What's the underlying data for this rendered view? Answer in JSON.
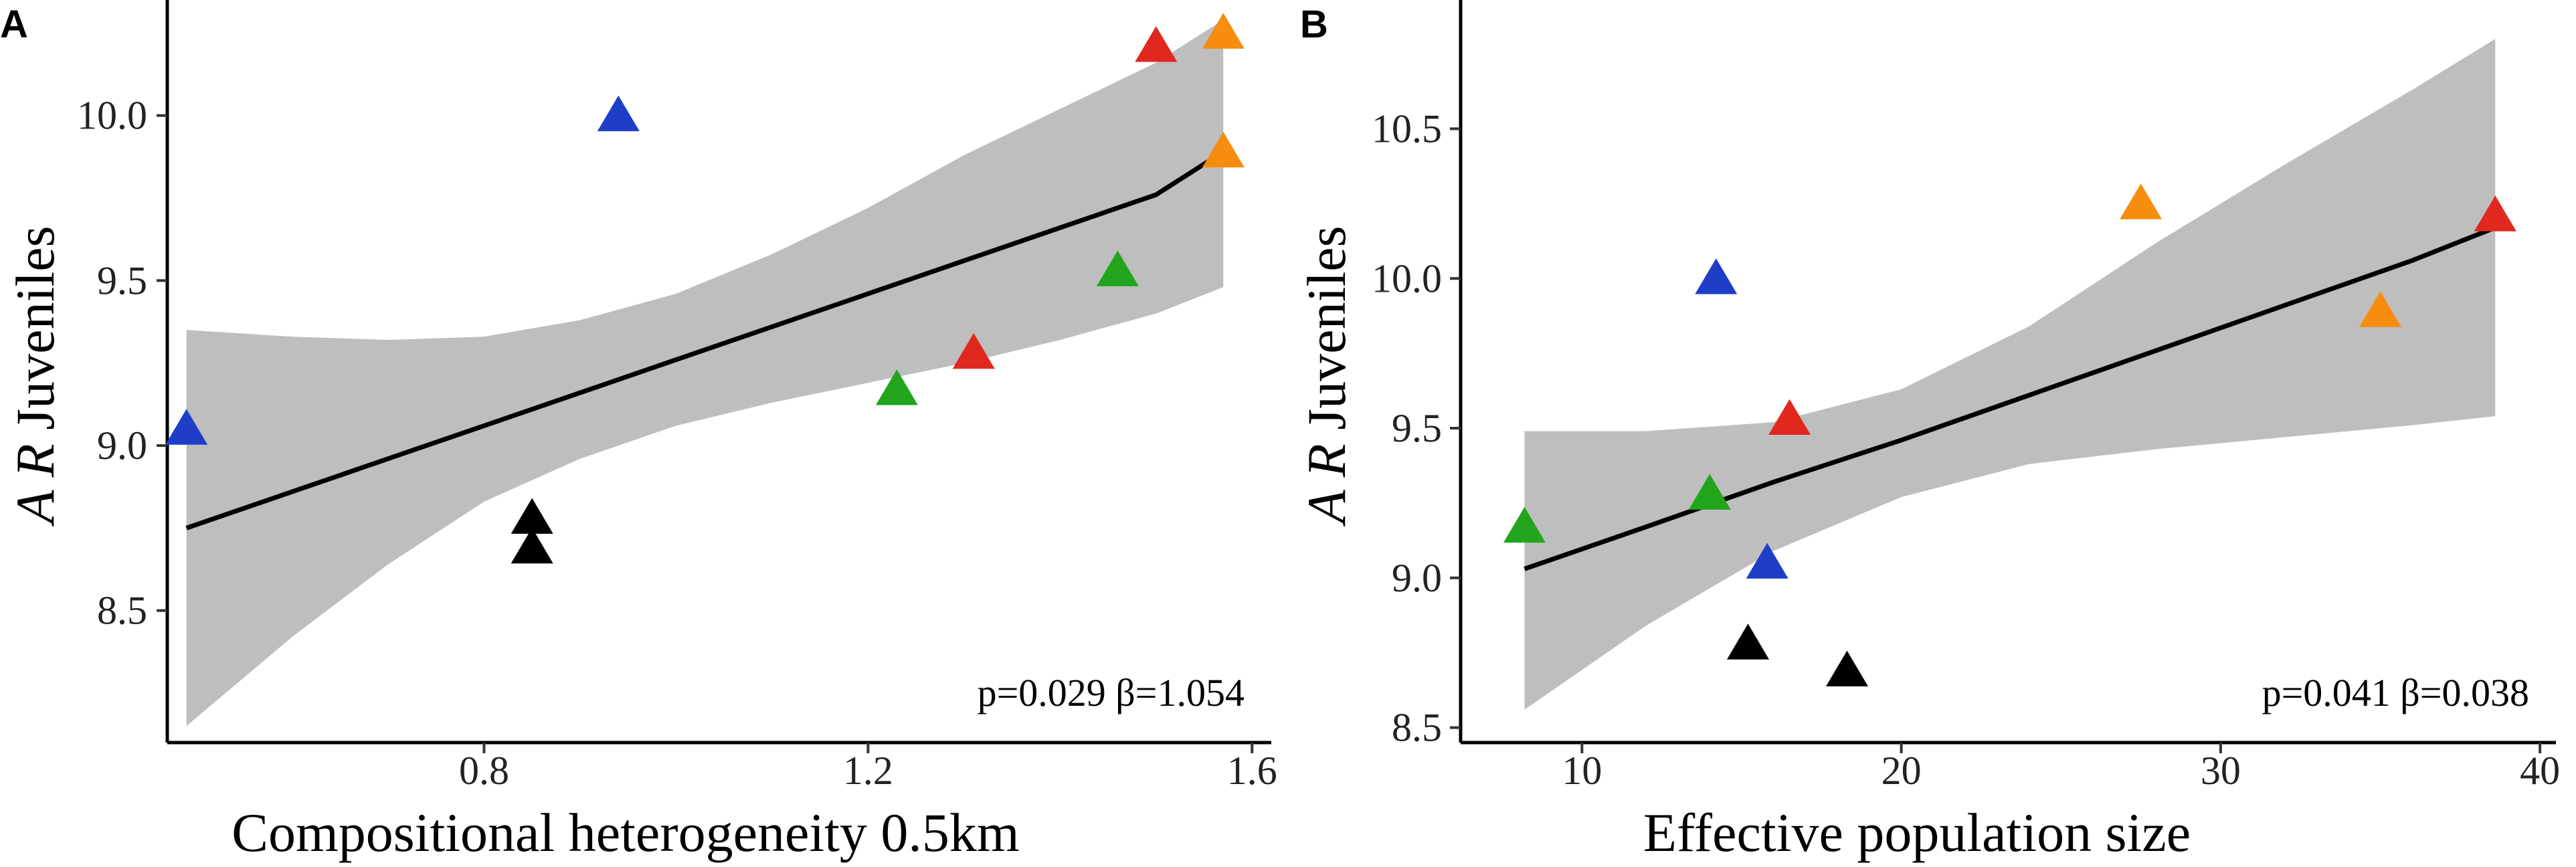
{
  "chart_data": [
    {
      "panel": "A",
      "type": "scatter",
      "title": "",
      "xlabel": "Compositional heterogeneity 0.5km",
      "ylabel_italic": "A R",
      "ylabel_rest": " Juveniles",
      "xlim": [
        0.47,
        1.62
      ],
      "ylim": [
        8.1,
        10.35
      ],
      "xticks": [
        0.8,
        1.2,
        1.6
      ],
      "xtick_labels": [
        "0.8",
        "1.2",
        "1.6"
      ],
      "yticks": [
        8.5,
        9.0,
        9.5,
        10.0
      ],
      "ytick_labels": [
        "8.5",
        "9.0",
        "9.5",
        "10.0"
      ],
      "annotation": "p=0.029 β=1.054",
      "fit": {
        "x": [
          0.49,
          0.6,
          0.7,
          0.8,
          0.9,
          1.0,
          1.1,
          1.2,
          1.3,
          1.4,
          1.5,
          1.57
        ],
        "y": [
          8.75,
          8.86,
          8.96,
          9.06,
          9.16,
          9.26,
          9.36,
          9.46,
          9.56,
          9.66,
          9.76,
          9.89
        ],
        "lower": [
          8.15,
          8.42,
          8.64,
          8.83,
          8.96,
          9.06,
          9.13,
          9.19,
          9.25,
          9.32,
          9.4,
          9.48
        ],
        "upper": [
          9.35,
          9.33,
          9.32,
          9.33,
          9.38,
          9.46,
          9.58,
          9.72,
          9.88,
          10.02,
          10.16,
          10.29
        ]
      },
      "points": [
        {
          "x": 0.49,
          "y": 9.05,
          "group": "blue"
        },
        {
          "x": 0.94,
          "y": 10.0,
          "group": "blue"
        },
        {
          "x": 0.85,
          "y": 8.78,
          "group": "black"
        },
        {
          "x": 0.85,
          "y": 8.69,
          "group": "black"
        },
        {
          "x": 1.23,
          "y": 9.17,
          "group": "green"
        },
        {
          "x": 1.46,
          "y": 9.53,
          "group": "green"
        },
        {
          "x": 1.31,
          "y": 9.28,
          "group": "red"
        },
        {
          "x": 1.5,
          "y": 10.21,
          "group": "red"
        },
        {
          "x": 1.57,
          "y": 9.89,
          "group": "orange"
        },
        {
          "x": 1.57,
          "y": 10.25,
          "group": "orange"
        }
      ]
    },
    {
      "panel": "B",
      "type": "scatter",
      "title": "",
      "xlabel": "Effective population size",
      "ylabel_italic": "A R",
      "ylabel_rest": " Juveniles",
      "xlim": [
        6.2,
        40.5
      ],
      "ylim": [
        8.45,
        10.93
      ],
      "xticks": [
        10,
        20,
        30,
        40
      ],
      "xtick_labels": [
        "10",
        "20",
        "30",
        "40"
      ],
      "yticks": [
        8.5,
        9.0,
        9.5,
        10.0,
        10.5
      ],
      "ytick_labels": [
        "8.5",
        "9.0",
        "9.5",
        "10.0",
        "10.5"
      ],
      "annotation": "p=0.041 β=0.038",
      "fit": {
        "x": [
          8.2,
          12,
          16,
          20,
          24,
          28,
          32,
          36,
          38.6
        ],
        "y": [
          9.03,
          9.17,
          9.32,
          9.46,
          9.61,
          9.76,
          9.91,
          10.06,
          10.17
        ],
        "lower": [
          8.56,
          8.84,
          9.09,
          9.27,
          9.38,
          9.43,
          9.47,
          9.51,
          9.54
        ],
        "upper": [
          9.49,
          9.49,
          9.52,
          9.63,
          9.84,
          10.12,
          10.38,
          10.63,
          10.8
        ]
      },
      "points": [
        {
          "x": 8.2,
          "y": 9.17,
          "group": "green"
        },
        {
          "x": 14.0,
          "y": 9.28,
          "group": "green"
        },
        {
          "x": 14.2,
          "y": 10.0,
          "group": "blue"
        },
        {
          "x": 15.8,
          "y": 9.05,
          "group": "blue"
        },
        {
          "x": 16.5,
          "y": 9.53,
          "group": "red"
        },
        {
          "x": 38.6,
          "y": 10.21,
          "group": "red"
        },
        {
          "x": 15.2,
          "y": 8.78,
          "group": "black"
        },
        {
          "x": 18.3,
          "y": 8.69,
          "group": "black"
        },
        {
          "x": 27.5,
          "y": 10.25,
          "group": "orange"
        },
        {
          "x": 35.0,
          "y": 9.89,
          "group": "orange"
        }
      ]
    }
  ],
  "group_colors": {
    "blue": "#1f3ec8",
    "black": "#000000",
    "green": "#22a51c",
    "red": "#e0281f",
    "orange": "#f68d0f"
  }
}
